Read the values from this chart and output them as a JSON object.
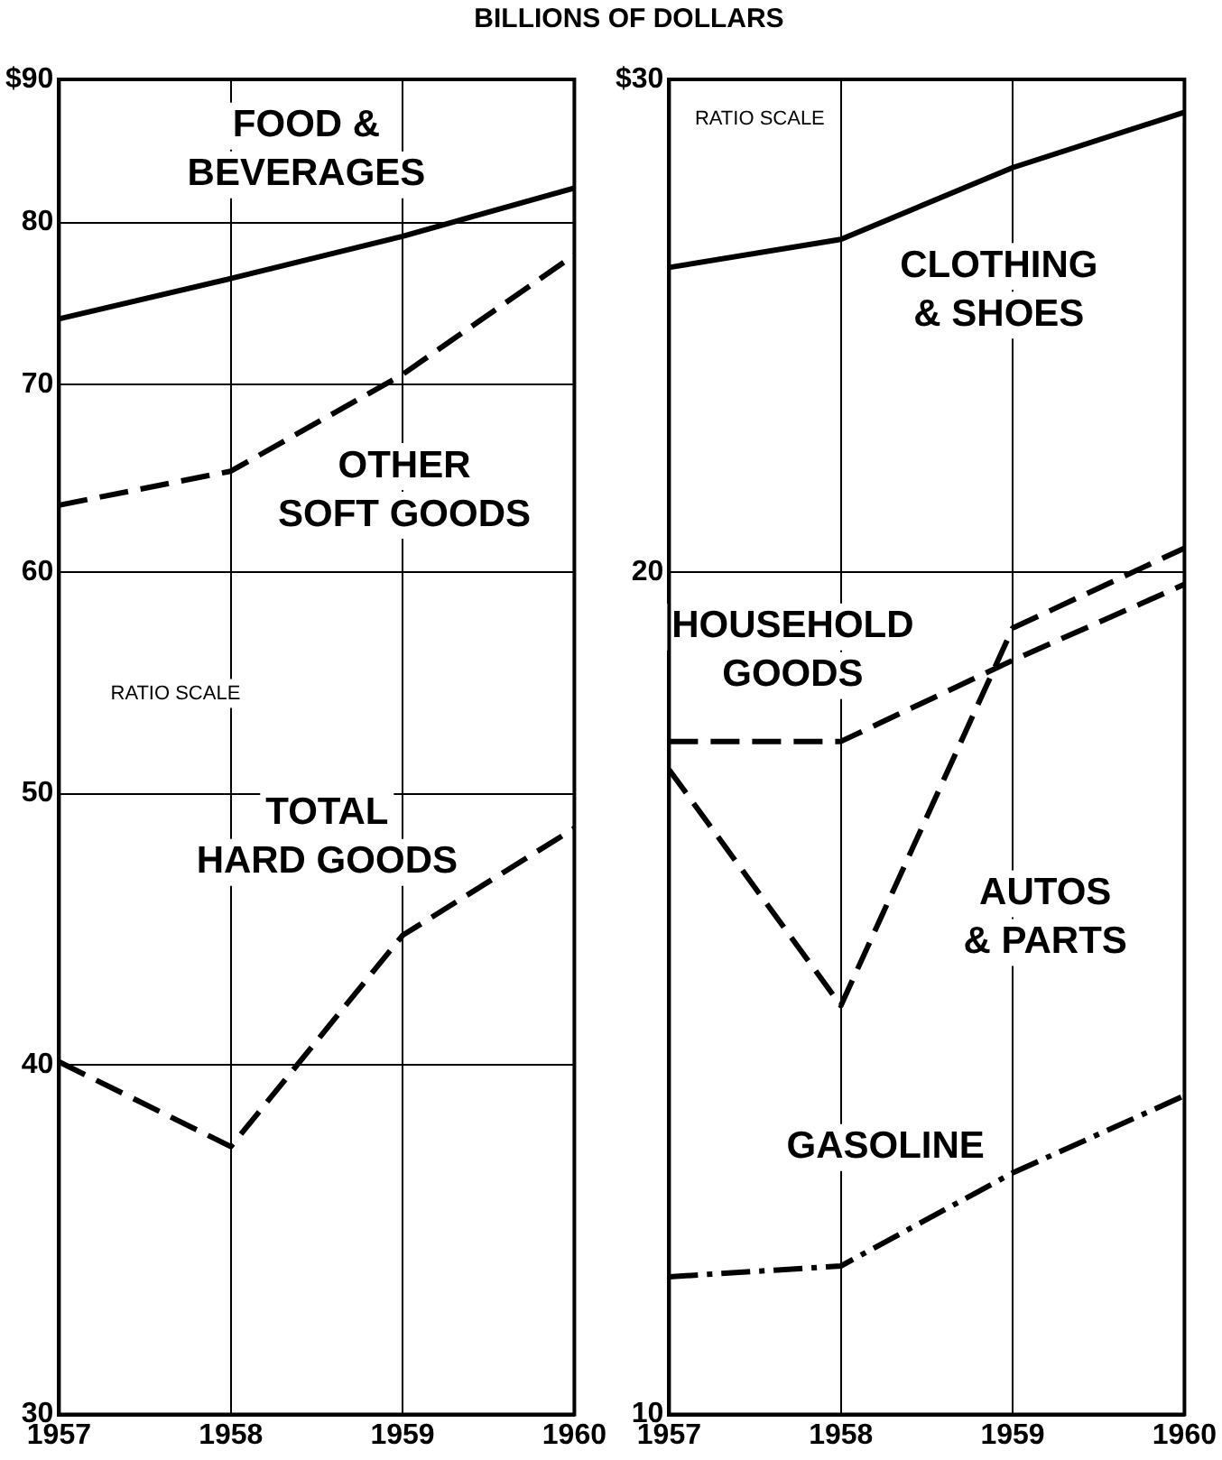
{
  "chart_data": [
    {
      "type": "line",
      "title": "BILLIONS OF DOLLARS",
      "categories": [
        "1957",
        "1958",
        "1959",
        "1960"
      ],
      "log": "y",
      "ylim": [
        30,
        90
      ],
      "yticks": [
        30,
        40,
        50,
        60,
        70,
        80,
        {
          "value": 90,
          "label": "$90"
        }
      ],
      "grid": true,
      "legend": false,
      "marker": "none",
      "annotations": [
        "RATIO SCALE"
      ],
      "series": [
        {
          "name": "FOOD & BEVERAGES",
          "color": "#000000",
          "line_style": "solid",
          "values": [
            73.9,
            76.4,
            79.1,
            82.3
          ]
        },
        {
          "name": "OTHER SOFT GOODS",
          "color": "#000000",
          "line_style": "dashed",
          "values": [
            63.4,
            65.2,
            70.6,
            77.9
          ]
        },
        {
          "name": "TOTAL HARD GOODS",
          "color": "#000000",
          "line_style": "dashed",
          "values": [
            40.1,
            37.4,
            44.5,
            48.6
          ]
        }
      ]
    },
    {
      "type": "line",
      "categories": [
        "1957",
        "1958",
        "1959",
        "1960"
      ],
      "log": "y",
      "ylim": [
        10,
        30
      ],
      "yticks": [
        10,
        20,
        {
          "value": 30,
          "label": "$30"
        }
      ],
      "grid": true,
      "legend": false,
      "marker": "none",
      "annotations": [
        "RATIO SCALE"
      ],
      "series": [
        {
          "name": "CLOTHING & SHOES",
          "color": "#000000",
          "line_style": "solid",
          "values": [
            25.7,
            26.3,
            27.9,
            29.2
          ]
        },
        {
          "name": "HOUSEHOLD GOODS",
          "color": "#000000",
          "line_style": "dashed",
          "values": [
            17.4,
            17.4,
            18.6,
            19.8
          ]
        },
        {
          "name": "AUTOS & PARTS",
          "color": "#000000",
          "line_style": "dashed",
          "values": [
            17.0,
            14.0,
            19.1,
            20.4
          ]
        },
        {
          "name": "GASOLINE",
          "color": "#000000",
          "line_style": "dotted",
          "values": [
            11.2,
            11.3,
            12.2,
            13.0
          ]
        }
      ]
    }
  ]
}
